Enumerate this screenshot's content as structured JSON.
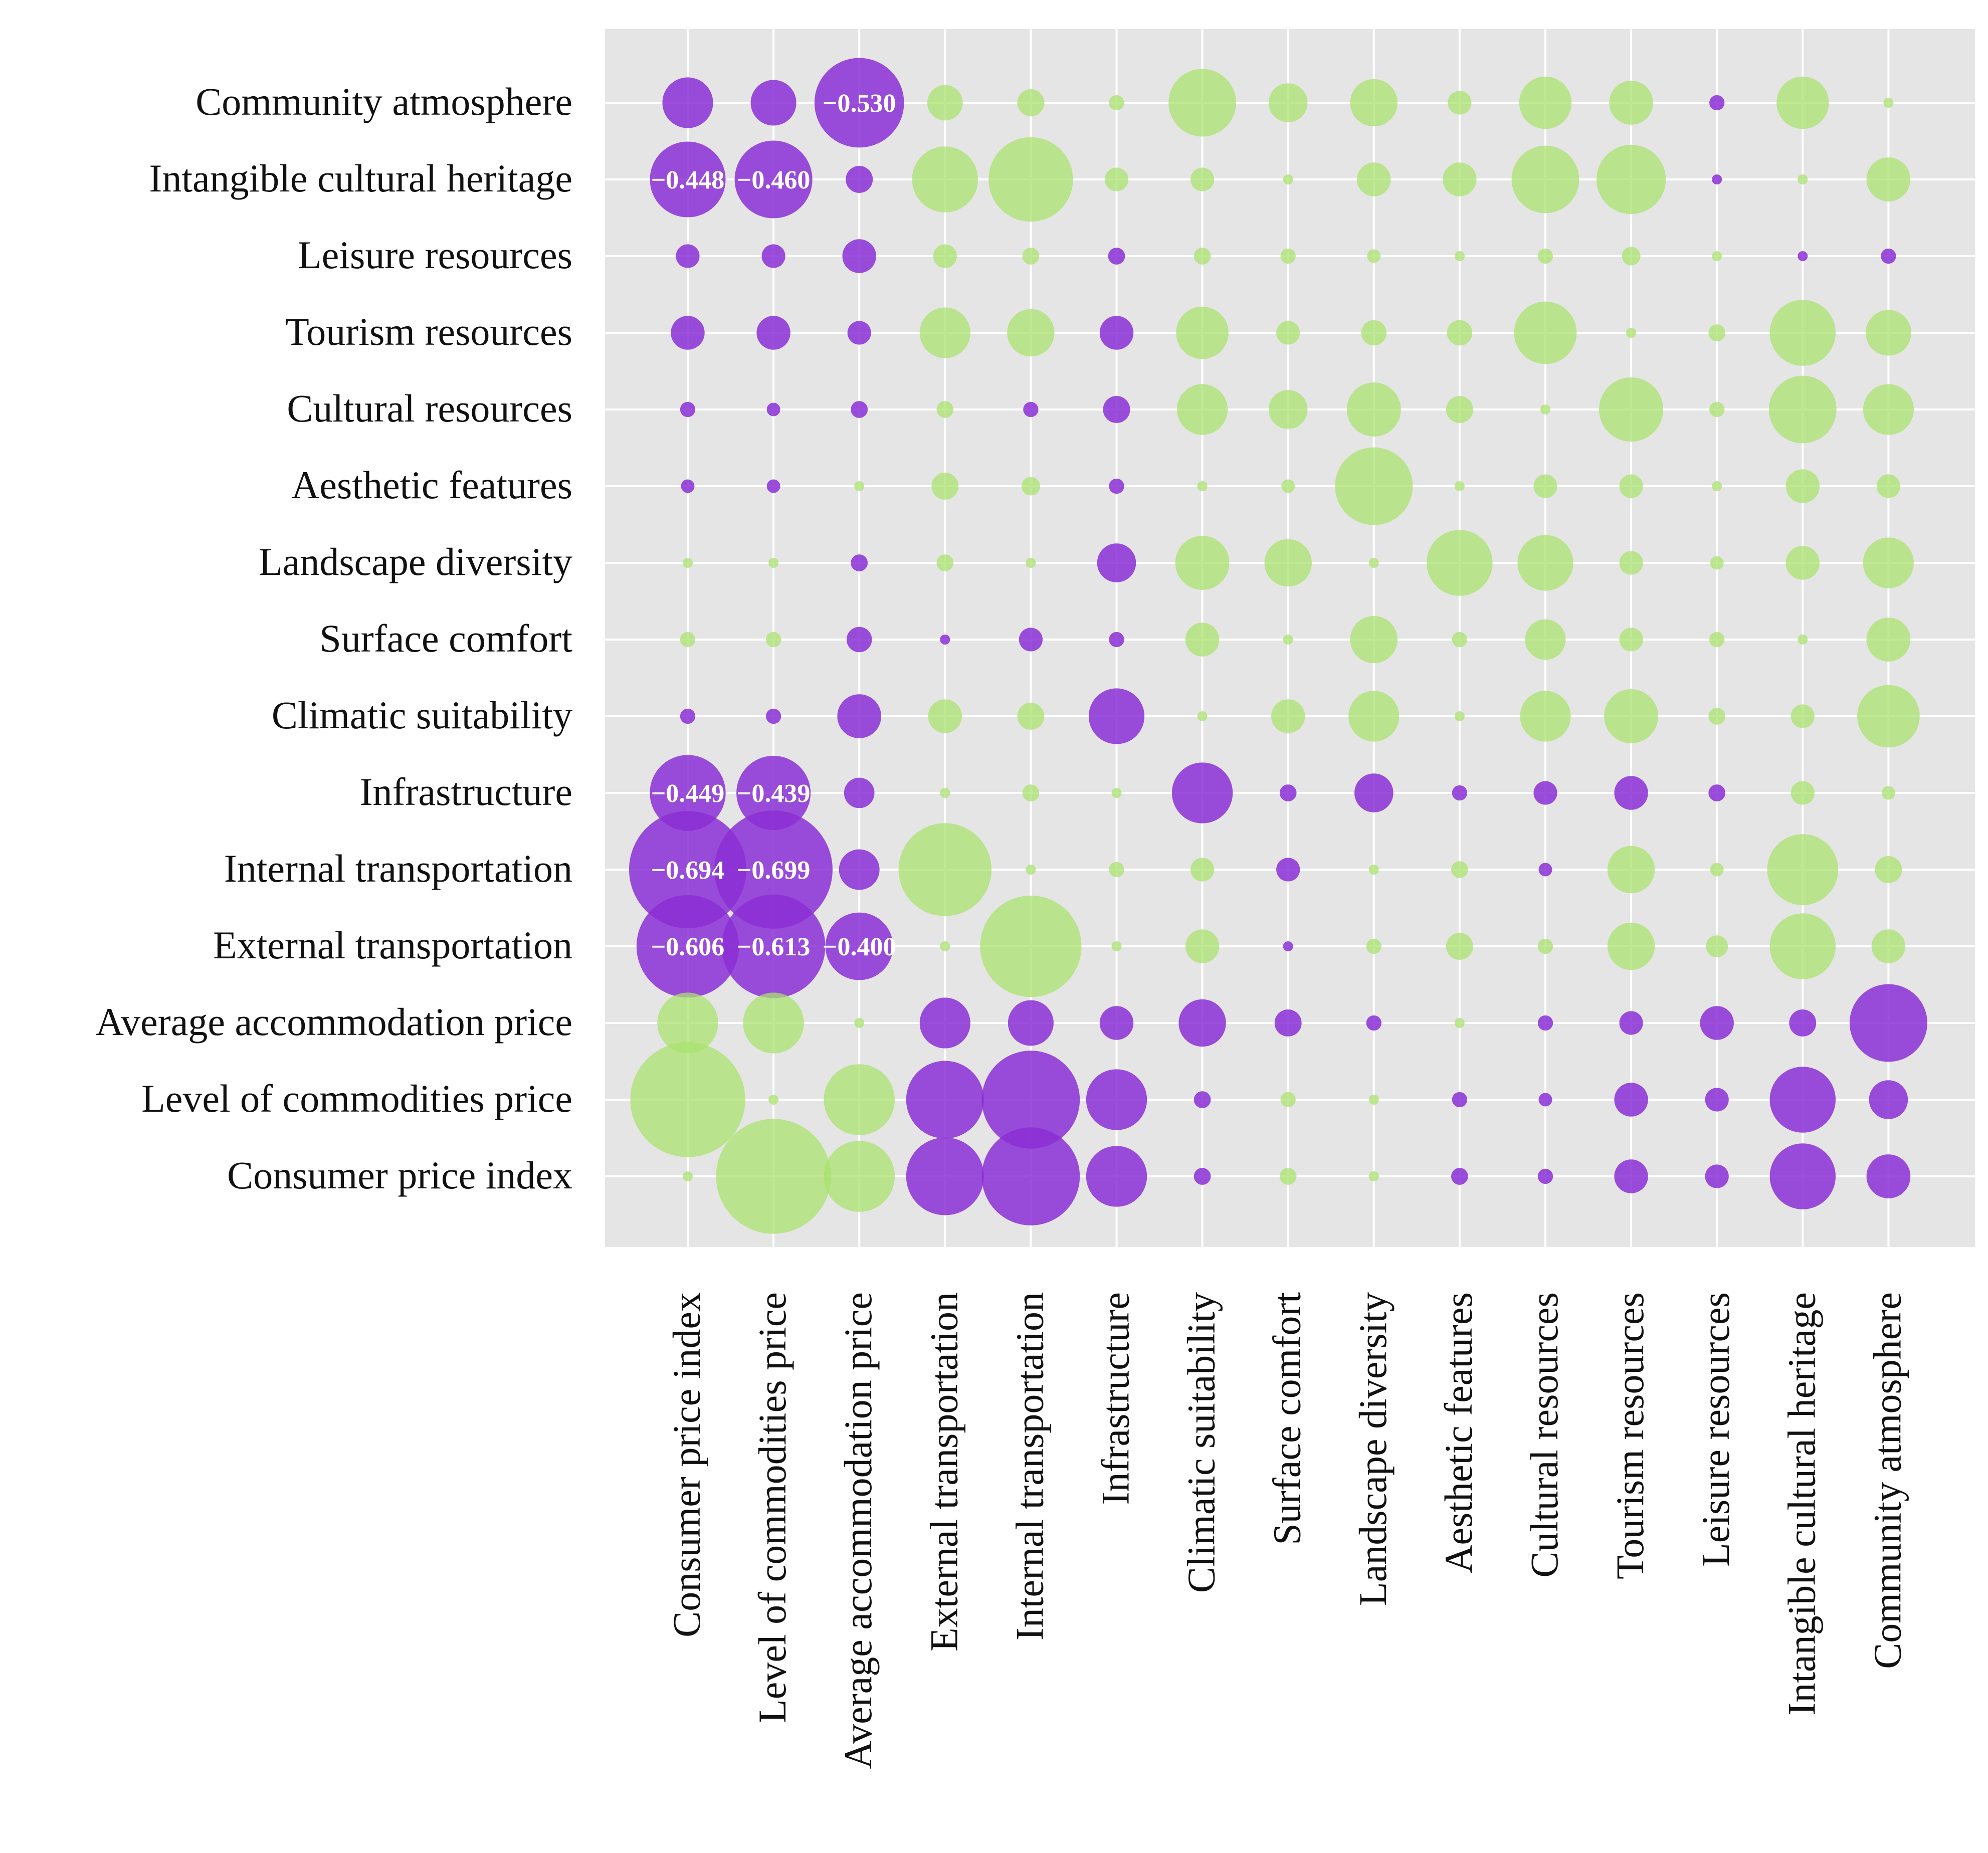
{
  "chart_data": {
    "type": "bubble-correlation-matrix",
    "title": "",
    "colors": {
      "negative": "#8b2fd6",
      "positive": "#a9e26f",
      "panel": "#e5e5e5",
      "grid": "#ffffff"
    },
    "x_categories": [
      "Consumer price index",
      "Level of commodities price",
      "Average accommodation price",
      "External transportation",
      "Internal transportation",
      "Infrastructure",
      "Climatic suitability",
      "Surface comfort",
      "Landscape diversity",
      "Aesthetic features",
      "Cultural resources",
      "Tourism resources",
      "Leisure resources",
      "Intangible cultural heritage",
      "Community atmosphere"
    ],
    "y_categories": [
      "Community atmosphere",
      "Intangible cultural heritage",
      "Leisure resources",
      "Tourism resources",
      "Cultural resources",
      "Aesthetic features",
      "Landscape diversity",
      "Surface comfort",
      "Climatic suitability",
      "Infrastructure",
      "Internal transportation",
      "External transportation",
      "Average accommodation price",
      "Level of commodities price",
      "Consumer price index"
    ],
    "matrix": [
      [
        -0.3,
        -0.27,
        -0.53,
        0.21,
        0.16,
        0.09,
        0.4,
        0.23,
        0.28,
        0.14,
        0.31,
        0.26,
        -0.09,
        0.31,
        0.05
      ],
      [
        -0.448,
        -0.46,
        -0.16,
        0.39,
        0.5,
        0.14,
        0.14,
        0.06,
        0.2,
        0.2,
        0.4,
        0.41,
        -0.05,
        0.06,
        0.26
      ],
      [
        -0.14,
        -0.14,
        -0.2,
        0.14,
        0.1,
        -0.1,
        0.1,
        0.09,
        0.08,
        0.06,
        0.09,
        0.11,
        0.05,
        -0.05,
        -0.09
      ],
      [
        -0.2,
        -0.2,
        -0.14,
        0.3,
        0.28,
        -0.2,
        0.31,
        0.14,
        0.15,
        0.15,
        0.37,
        0.05,
        0.1,
        0.39,
        0.27
      ],
      [
        -0.09,
        -0.08,
        -0.1,
        0.1,
        -0.09,
        -0.16,
        0.3,
        0.23,
        0.32,
        0.16,
        0.05,
        0.38,
        0.09,
        0.4,
        0.3
      ],
      [
        -0.08,
        -0.08,
        0.05,
        0.16,
        0.11,
        -0.09,
        0.06,
        0.08,
        0.46,
        0.05,
        0.14,
        0.14,
        0.05,
        0.2,
        0.14
      ],
      [
        0.05,
        0.05,
        -0.1,
        0.1,
        0.05,
        -0.23,
        0.32,
        0.28,
        0.05,
        0.39,
        0.33,
        0.14,
        0.08,
        0.2,
        0.3
      ],
      [
        0.09,
        0.09,
        -0.15,
        -0.05,
        -0.14,
        -0.09,
        0.2,
        0.05,
        0.28,
        0.09,
        0.24,
        0.14,
        0.09,
        0.05,
        0.26
      ],
      [
        -0.09,
        -0.09,
        -0.26,
        0.2,
        0.16,
        -0.33,
        0.05,
        0.2,
        0.3,
        0.05,
        0.3,
        0.32,
        0.1,
        0.14,
        0.37
      ],
      [
        -0.449,
        -0.439,
        -0.18,
        0.05,
        0.1,
        0.05,
        -0.36,
        -0.1,
        -0.23,
        -0.09,
        -0.14,
        -0.2,
        -0.1,
        0.14,
        0.08
      ],
      [
        -0.694,
        -0.699,
        -0.24,
        0.55,
        0.05,
        0.09,
        0.14,
        -0.14,
        0.05,
        0.1,
        -0.08,
        0.28,
        0.08,
        0.42,
        0.16
      ],
      [
        -0.606,
        -0.613,
        -0.4,
        0.05,
        0.6,
        0.05,
        0.2,
        -0.05,
        0.09,
        0.16,
        0.09,
        0.28,
        0.13,
        0.39,
        0.2
      ],
      [
        0.36,
        0.36,
        0.05,
        -0.3,
        -0.27,
        -0.2,
        -0.28,
        -0.16,
        -0.09,
        0.05,
        -0.09,
        -0.14,
        -0.2,
        -0.16,
        -0.46
      ],
      [
        0.68,
        0.05,
        0.42,
        -0.46,
        -0.58,
        -0.36,
        -0.1,
        0.09,
        0.05,
        -0.09,
        -0.08,
        -0.2,
        -0.14,
        -0.39,
        -0.23
      ],
      [
        0.05,
        0.68,
        0.42,
        -0.46,
        -0.58,
        -0.36,
        -0.1,
        0.1,
        0.06,
        -0.1,
        -0.09,
        -0.2,
        -0.14,
        -0.39,
        -0.26
      ]
    ],
    "labeled_values": [
      {
        "y": "Community atmosphere",
        "x": "Average accommodation price",
        "text": "−0.530"
      },
      {
        "y": "Intangible cultural heritage",
        "x": "Consumer price index",
        "text": "−0.448"
      },
      {
        "y": "Intangible cultural heritage",
        "x": "Level of commodities price",
        "text": "−0.460"
      },
      {
        "y": "Infrastructure",
        "x": "Consumer price index",
        "text": "−0.449"
      },
      {
        "y": "Infrastructure",
        "x": "Level of commodities price",
        "text": "−0.439"
      },
      {
        "y": "Internal transportation",
        "x": "Consumer price index",
        "text": "−0.694"
      },
      {
        "y": "Internal transportation",
        "x": "Level of commodities price",
        "text": "−0.699"
      },
      {
        "y": "External transportation",
        "x": "Consumer price index",
        "text": "−0.606"
      },
      {
        "y": "External transportation",
        "x": "Level of commodities price",
        "text": "−0.613"
      },
      {
        "y": "External transportation",
        "x": "Average accommodation price",
        "text": "−0.400"
      }
    ],
    "xlabel": "",
    "ylabel": "",
    "grid": true,
    "legend": "none"
  }
}
